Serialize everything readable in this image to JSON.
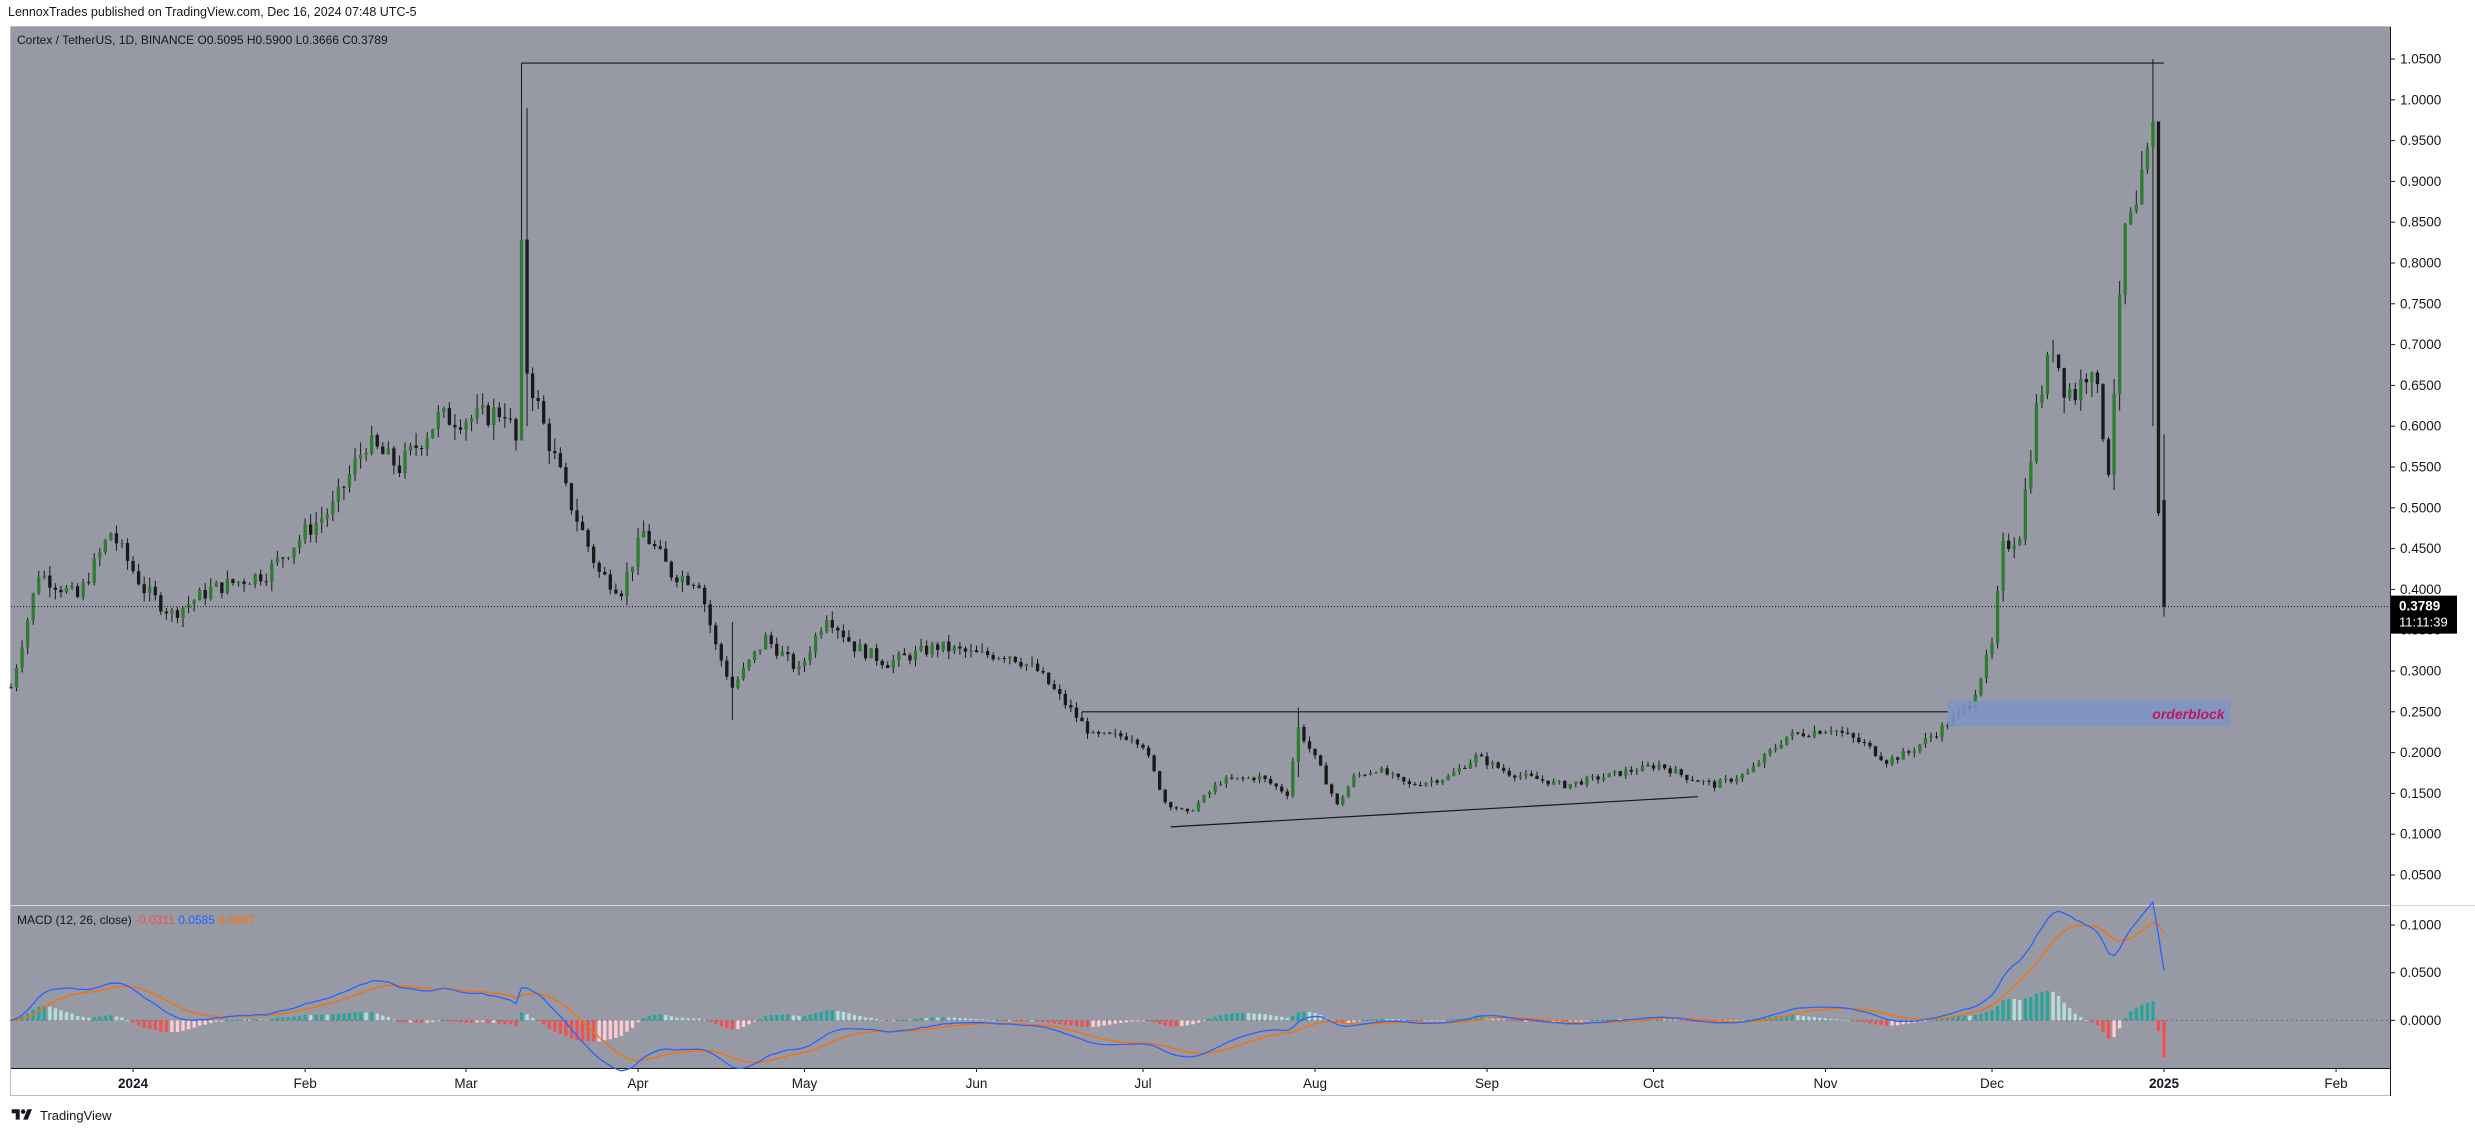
{
  "header": {
    "published_text": "LennoxTrades published on TradingView.com, Dec 16, 2024 07:48 UTC-5"
  },
  "footer": {
    "brand": "TradingView",
    "logo_icon": "tradingview-logo-icon"
  },
  "colors": {
    "pane_bg": "#979aa4",
    "axis_bg": "#ffffff",
    "candle_up": "#2e7d32",
    "candle_down": "#1a1a1a",
    "macd_line": "#2962ff",
    "signal_line": "#ff6d00",
    "hist_pos_strong": "#26a69a",
    "hist_pos_weak": "#b2dfdb",
    "hist_neg_strong": "#ef5350",
    "hist_neg_weak": "#ffcdd2",
    "orderblock_fill": "#7d93c8",
    "orderblock_text": "#c2185b"
  },
  "chart_data": {
    "type": "candlestick",
    "symbol_legend": {
      "symbol": "Cortex / TetherUS, 1D, BINANCE",
      "open_label": "O",
      "open": "0.5095",
      "high_label": "H",
      "high": "0.5900",
      "low_label": "L",
      "low": "0.3666",
      "close_label": "C",
      "close": "0.3789"
    },
    "price_axis_ticks": [
      "1.0500",
      "1.0000",
      "0.9500",
      "0.9000",
      "0.8500",
      "0.8000",
      "0.7500",
      "0.7000",
      "0.6500",
      "0.6000",
      "0.5500",
      "0.5000",
      "0.4500",
      "0.4000",
      "0.3500",
      "0.3000",
      "0.2500",
      "0.2000",
      "0.1500",
      "0.1000",
      "0.0500"
    ],
    "price_range": [
      0.0,
      1.05
    ],
    "last_price_label": "0.3789",
    "countdown_label": "11:11:39",
    "time_axis_labels": [
      "2024",
      "Feb",
      "Mar",
      "Apr",
      "May",
      "Jun",
      "Jul",
      "Aug",
      "Sep",
      "Oct",
      "Nov",
      "Dec",
      "2025",
      "Feb"
    ],
    "time_axis_dates": [
      "2024-01-01",
      "2024-02-01",
      "2024-03-01",
      "2024-04-01",
      "2024-05-01",
      "2024-06-01",
      "2024-07-01",
      "2024-08-01",
      "2024-09-01",
      "2024-10-01",
      "2024-11-01",
      "2024-12-01",
      "2025-01-01",
      "2025-02-01"
    ],
    "date_range": [
      "2023-12-10",
      "2025-02-10"
    ],
    "price_path_anchors": [
      [
        "2023-12-10",
        0.28
      ],
      [
        "2023-12-15",
        0.42
      ],
      [
        "2023-12-22",
        0.39
      ],
      [
        "2023-12-28",
        0.47
      ],
      [
        "2024-01-03",
        0.4
      ],
      [
        "2024-01-08",
        0.37
      ],
      [
        "2024-01-15",
        0.4
      ],
      [
        "2024-01-25",
        0.42
      ],
      [
        "2024-02-01",
        0.47
      ],
      [
        "2024-02-06",
        0.5
      ],
      [
        "2024-02-12",
        0.58
      ],
      [
        "2024-02-18",
        0.55
      ],
      [
        "2024-02-25",
        0.61
      ],
      [
        "2024-03-03",
        0.61
      ],
      [
        "2024-03-08",
        0.62
      ],
      [
        "2024-03-10",
        0.58
      ],
      [
        "2024-03-11",
        0.81
      ],
      [
        "2024-03-12",
        0.67
      ],
      [
        "2024-03-15",
        0.6
      ],
      [
        "2024-03-19",
        0.52
      ],
      [
        "2024-03-25",
        0.42
      ],
      [
        "2024-03-29",
        0.4
      ],
      [
        "2024-04-02",
        0.47
      ],
      [
        "2024-04-07",
        0.42
      ],
      [
        "2024-04-12",
        0.41
      ],
      [
        "2024-04-15",
        0.33
      ],
      [
        "2024-04-18",
        0.28
      ],
      [
        "2024-04-24",
        0.34
      ],
      [
        "2024-04-30",
        0.3
      ],
      [
        "2024-05-05",
        0.37
      ],
      [
        "2024-05-10",
        0.33
      ],
      [
        "2024-05-16",
        0.31
      ],
      [
        "2024-05-25",
        0.33
      ],
      [
        "2024-06-01",
        0.32
      ],
      [
        "2024-06-07",
        0.32
      ],
      [
        "2024-06-12",
        0.3
      ],
      [
        "2024-06-17",
        0.26
      ],
      [
        "2024-06-22",
        0.22
      ],
      [
        "2024-06-29",
        0.22
      ],
      [
        "2024-07-01",
        0.21
      ],
      [
        "2024-07-05",
        0.14
      ],
      [
        "2024-07-09",
        0.125
      ],
      [
        "2024-07-15",
        0.165
      ],
      [
        "2024-07-22",
        0.17
      ],
      [
        "2024-07-27",
        0.15
      ],
      [
        "2024-07-29",
        0.23
      ],
      [
        "2024-08-02",
        0.18
      ],
      [
        "2024-08-05",
        0.135
      ],
      [
        "2024-08-08",
        0.17
      ],
      [
        "2024-08-12",
        0.18
      ],
      [
        "2024-08-18",
        0.16
      ],
      [
        "2024-08-25",
        0.17
      ],
      [
        "2024-08-30",
        0.195
      ],
      [
        "2024-09-05",
        0.175
      ],
      [
        "2024-09-15",
        0.16
      ],
      [
        "2024-09-25",
        0.175
      ],
      [
        "2024-10-02",
        0.185
      ],
      [
        "2024-10-07",
        0.17
      ],
      [
        "2024-10-12",
        0.16
      ],
      [
        "2024-10-18",
        0.175
      ],
      [
        "2024-10-25",
        0.22
      ],
      [
        "2024-11-02",
        0.23
      ],
      [
        "2024-11-08",
        0.21
      ],
      [
        "2024-11-12",
        0.19
      ],
      [
        "2024-11-16",
        0.2
      ],
      [
        "2024-11-22",
        0.23
      ],
      [
        "2024-11-27",
        0.26
      ],
      [
        "2024-12-01",
        0.33
      ],
      [
        "2024-12-03",
        0.45
      ],
      [
        "2024-12-06",
        0.47
      ],
      [
        "2024-12-09",
        0.62
      ],
      [
        "2024-12-12",
        0.7
      ],
      [
        "2024-12-14",
        0.65
      ],
      [
        "2024-12-16",
        0.64
      ],
      [
        "2024-12-19",
        0.68
      ],
      [
        "2024-12-22",
        0.55
      ],
      [
        "2024-12-25",
        0.84
      ],
      [
        "2024-12-27",
        0.86
      ],
      [
        "2024-12-30",
        0.96
      ],
      [
        "2024-12-31",
        0.5
      ],
      [
        "2025-01-01",
        0.3789
      ]
    ],
    "annotations": {
      "horizontal_line_top": {
        "from": "2024-03-11",
        "to": "2025-01-01",
        "price": 1.045
      },
      "resistance_line": {
        "from": "2024-06-20",
        "to": "2024-11-23",
        "price": 0.25
      },
      "support_trendline": {
        "from": "2024-07-06",
        "to": "2024-10-09",
        "price_start": 0.109,
        "price_end": 0.146
      },
      "orderblock": {
        "from": "2024-11-23",
        "to": "2025-01-13",
        "price_top": 0.263,
        "price_bottom": 0.232,
        "label": "orderblock"
      }
    },
    "macd": {
      "legend_name": "MACD (12, 26, close)",
      "hist_value": "-0.0311",
      "macd_value": "0.0585",
      "signal_value": "0.0897",
      "axis_ticks": [
        "0.1000",
        "0.0500",
        "0.0000"
      ],
      "range": [
        -0.05,
        0.12
      ]
    }
  }
}
